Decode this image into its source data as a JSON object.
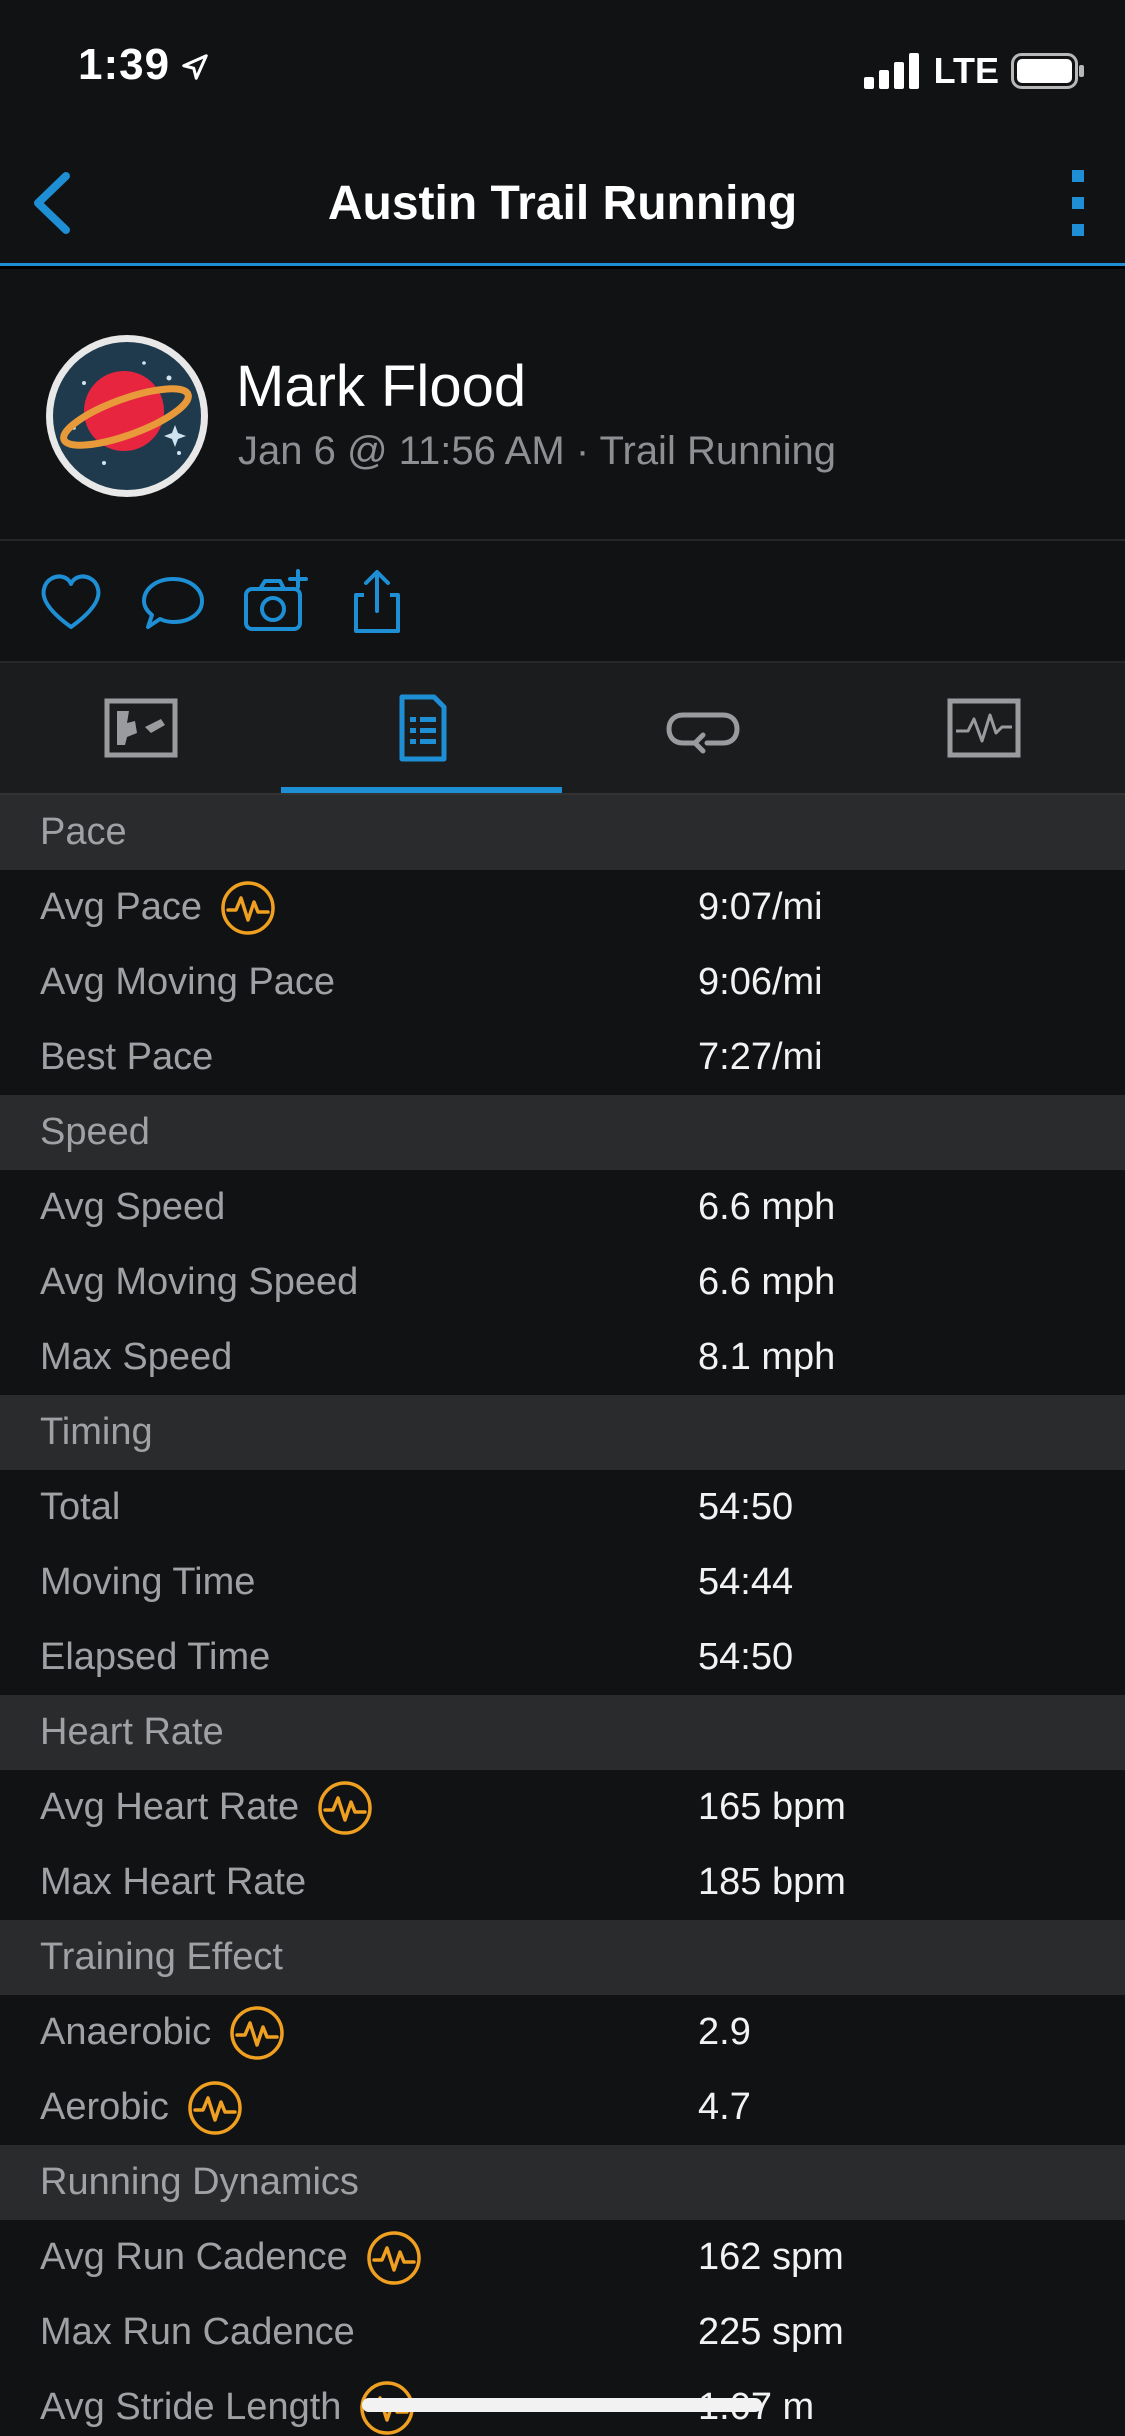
{
  "status_bar": {
    "time": "1:39",
    "network": "LTE"
  },
  "nav": {
    "title": "Austin Trail Running"
  },
  "profile": {
    "name": "Mark Flood",
    "subtitle": "Jan 6 @ 11:56 AM · Trail Running"
  },
  "actions": [
    {
      "icon": "heart-icon"
    },
    {
      "icon": "comment-icon"
    },
    {
      "icon": "add-photo-icon"
    },
    {
      "icon": "share-icon"
    }
  ],
  "tabs": [
    {
      "icon": "map-icon",
      "active": false
    },
    {
      "icon": "stats-list-icon",
      "active": true
    },
    {
      "icon": "laps-icon",
      "active": false
    },
    {
      "icon": "chart-icon",
      "active": false
    }
  ],
  "colors": {
    "accent": "#1e8fd4",
    "metric_badge": "#f0a020",
    "background": "#111214",
    "section": "#2a2b2d"
  },
  "sections": [
    {
      "title": "Pace",
      "rows": [
        {
          "label": "Avg Pace",
          "value": "9:07/mi",
          "badge": true
        },
        {
          "label": "Avg Moving Pace",
          "value": "9:06/mi",
          "badge": false
        },
        {
          "label": "Best Pace",
          "value": "7:27/mi",
          "badge": false
        }
      ]
    },
    {
      "title": "Speed",
      "rows": [
        {
          "label": "Avg Speed",
          "value": "6.6 mph",
          "badge": false
        },
        {
          "label": "Avg Moving Speed",
          "value": "6.6 mph",
          "badge": false
        },
        {
          "label": "Max Speed",
          "value": "8.1 mph",
          "badge": false
        }
      ]
    },
    {
      "title": "Timing",
      "rows": [
        {
          "label": "Total",
          "value": "54:50",
          "badge": false
        },
        {
          "label": "Moving Time",
          "value": "54:44",
          "badge": false
        },
        {
          "label": "Elapsed Time",
          "value": "54:50",
          "badge": false
        }
      ]
    },
    {
      "title": "Heart Rate",
      "rows": [
        {
          "label": "Avg Heart Rate",
          "value": "165 bpm",
          "badge": true
        },
        {
          "label": "Max Heart Rate",
          "value": "185 bpm",
          "badge": false
        }
      ]
    },
    {
      "title": "Training Effect",
      "rows": [
        {
          "label": "Anaerobic",
          "value": "2.9",
          "badge": true
        },
        {
          "label": "Aerobic",
          "value": "4.7",
          "badge": true
        }
      ]
    },
    {
      "title": "Running Dynamics",
      "rows": [
        {
          "label": "Avg Run Cadence",
          "value": "162 spm",
          "badge": true
        },
        {
          "label": "Max Run Cadence",
          "value": "225 spm",
          "badge": false
        },
        {
          "label": "Avg Stride Length",
          "value": "1.07 m",
          "badge": true
        }
      ]
    }
  ]
}
